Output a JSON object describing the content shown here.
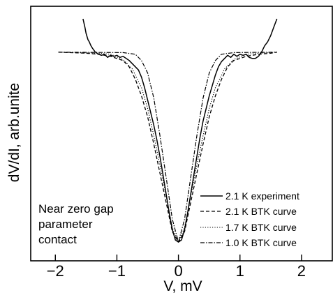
{
  "chart_data": {
    "type": "line",
    "title": "",
    "xlabel": "V,  mV",
    "ylabel": "dV/dI, arb.unite",
    "xlim": [
      -2.4,
      2.5
    ],
    "ylim": [
      0,
      1.22
    ],
    "x_ticks": [
      -2,
      -1,
      0,
      1,
      2
    ],
    "x_tick_labels": [
      "−2",
      "−1",
      "0",
      "1",
      "2"
    ],
    "y_ticks_labeled": false,
    "grid": false,
    "legend_placement": "bottom-right",
    "annotation": [
      "Near zero gap",
      "parameter",
      "contact"
    ],
    "series": [
      {
        "name": "2.1 K experiment",
        "style": "solid",
        "color": "#000000",
        "x": [
          -1.55,
          -1.52,
          -1.5,
          -1.47,
          -1.45,
          -1.42,
          -1.4,
          -1.35,
          -1.3,
          -1.25,
          -1.2,
          -1.15,
          -1.1,
          -1.05,
          -1.0,
          -0.95,
          -0.9,
          -0.85,
          -0.8,
          -0.75,
          -0.7,
          -0.65,
          -0.6,
          -0.55,
          -0.5,
          -0.45,
          -0.4,
          -0.35,
          -0.3,
          -0.25,
          -0.2,
          -0.15,
          -0.1,
          -0.05,
          0.0,
          0.05,
          0.1,
          0.15,
          0.2,
          0.25,
          0.3,
          0.35,
          0.4,
          0.45,
          0.5,
          0.55,
          0.6,
          0.65,
          0.7,
          0.75,
          0.8,
          0.85,
          0.9,
          0.95,
          1.0,
          1.05,
          1.1,
          1.15,
          1.2,
          1.25,
          1.3,
          1.35,
          1.4,
          1.45,
          1.5,
          1.55,
          1.6
        ],
        "y": [
          1.16,
          1.12,
          1.09,
          1.06,
          1.05,
          1.03,
          1.02,
          1.0,
          0.99,
          0.985,
          0.99,
          0.975,
          0.985,
          0.98,
          0.985,
          0.975,
          0.98,
          0.97,
          0.96,
          0.945,
          0.93,
          0.915,
          0.88,
          0.83,
          0.77,
          0.71,
          0.65,
          0.58,
          0.5,
          0.41,
          0.32,
          0.23,
          0.15,
          0.1,
          0.09,
          0.1,
          0.15,
          0.23,
          0.32,
          0.41,
          0.5,
          0.59,
          0.67,
          0.73,
          0.79,
          0.84,
          0.89,
          0.93,
          0.955,
          0.97,
          0.985,
          0.975,
          0.99,
          0.98,
          0.99,
          0.985,
          0.99,
          0.975,
          0.97,
          0.97,
          0.98,
          1.0,
          1.03,
          1.05,
          1.08,
          1.12,
          1.16
        ]
      },
      {
        "name": "2.1 K BTK curve",
        "style": "dashed",
        "color": "#000000",
        "x": [
          -1.95,
          -1.5,
          -1.3,
          -1.1,
          -0.9,
          -0.8,
          -0.7,
          -0.6,
          -0.5,
          -0.4,
          -0.3,
          -0.2,
          -0.1,
          0.0,
          0.1,
          0.2,
          0.3,
          0.4,
          0.5,
          0.6,
          0.7,
          0.8,
          0.9,
          1.1,
          1.3,
          1.5,
          1.6
        ],
        "y": [
          1.0,
          0.995,
          0.99,
          0.98,
          0.96,
          0.93,
          0.87,
          0.79,
          0.69,
          0.56,
          0.42,
          0.28,
          0.14,
          0.09,
          0.14,
          0.28,
          0.42,
          0.56,
          0.69,
          0.79,
          0.87,
          0.93,
          0.96,
          0.98,
          0.99,
          0.995,
          1.0
        ]
      },
      {
        "name": "1.7 K BTK curve",
        "style": "dotted",
        "color": "#000000",
        "x": [
          -1.95,
          -1.3,
          -1.1,
          -0.9,
          -0.75,
          -0.6,
          -0.5,
          -0.4,
          -0.3,
          -0.2,
          -0.1,
          0.0,
          0.1,
          0.2,
          0.3,
          0.4,
          0.5,
          0.6,
          0.75,
          0.9,
          1.1,
          1.3,
          1.6
        ],
        "y": [
          1.0,
          0.995,
          0.99,
          0.965,
          0.92,
          0.83,
          0.73,
          0.6,
          0.46,
          0.31,
          0.16,
          0.09,
          0.16,
          0.31,
          0.46,
          0.6,
          0.73,
          0.83,
          0.92,
          0.965,
          0.99,
          0.995,
          1.0
        ]
      },
      {
        "name": "1.0 K BTK curve",
        "style": "dashdot",
        "color": "#000000",
        "x": [
          -1.95,
          -0.9,
          -0.7,
          -0.6,
          -0.5,
          -0.4,
          -0.3,
          -0.2,
          -0.1,
          0.0,
          0.1,
          0.2,
          0.3,
          0.4,
          0.5,
          0.6,
          0.7,
          0.9,
          1.6
        ],
        "y": [
          1.0,
          0.998,
          0.99,
          0.96,
          0.9,
          0.78,
          0.6,
          0.4,
          0.2,
          0.09,
          0.2,
          0.4,
          0.6,
          0.78,
          0.9,
          0.96,
          0.99,
          0.998,
          1.0
        ]
      }
    ]
  }
}
